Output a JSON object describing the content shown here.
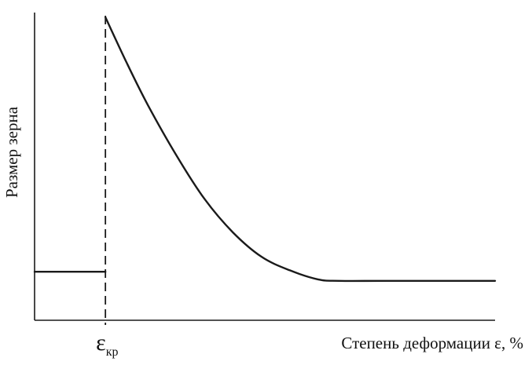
{
  "chart_data": {
    "type": "line",
    "title": "",
    "xlabel": "Степень деформации ε, %",
    "ylabel": "Размер зерна",
    "critical_marker": {
      "symbol": "ε",
      "subscript": "кр",
      "x": 1.0
    },
    "xlim": [
      0,
      6.5
    ],
    "ylim": [
      0,
      1
    ],
    "grid": false,
    "legend": "none",
    "series": [
      {
        "segment": "below-critical",
        "x": [
          0,
          1.0
        ],
        "y": [
          0.16,
          0.16
        ]
      },
      {
        "segment": "above-critical",
        "x": [
          1.0,
          1.3,
          1.6,
          2.0,
          2.4,
          2.8,
          3.2,
          3.6,
          4.0,
          4.3,
          5.0,
          6.5
        ],
        "y": [
          1.0,
          0.85,
          0.71,
          0.545,
          0.4,
          0.29,
          0.21,
          0.165,
          0.135,
          0.13,
          0.13,
          0.13
        ]
      }
    ]
  }
}
